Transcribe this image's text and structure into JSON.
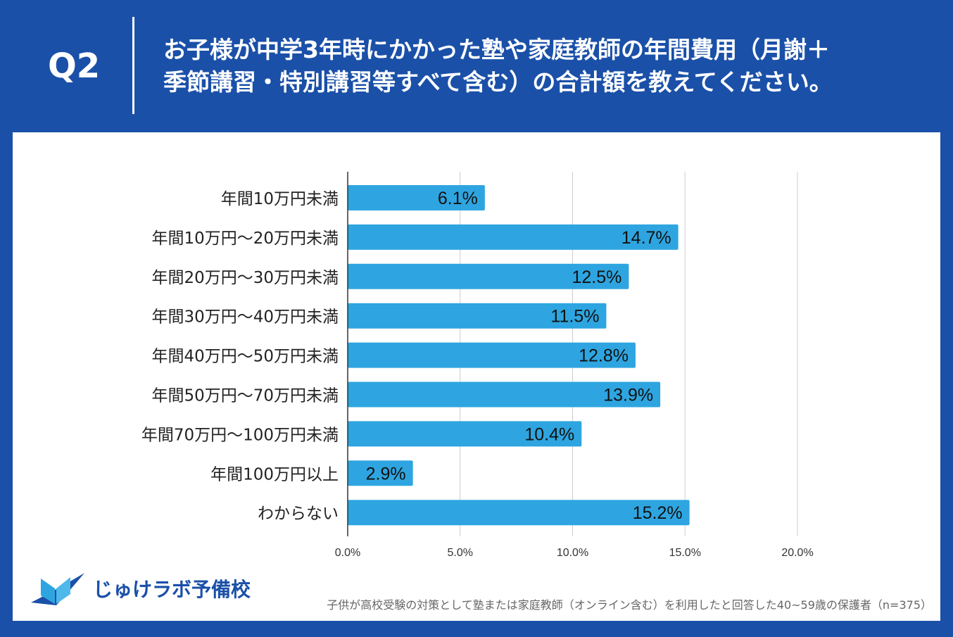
{
  "header": {
    "q_label": "Q2",
    "title_line1": "お子様が中学3年時にかかった塾や家庭教師の年間費用（月謝＋",
    "title_line2": "季節講習・特別講習等すべて含む）の合計額を教えてください。"
  },
  "colors": {
    "background": "#1a50a8",
    "bar": "#2ea5e0",
    "grid": "#cccccc"
  },
  "chart_data": {
    "type": "bar",
    "orientation": "horizontal",
    "categories": [
      "年間10万円未満",
      "年間10万円～20万円未満",
      "年間20万円～30万円未満",
      "年間30万円～40万円未満",
      "年間40万円～50万円未満",
      "年間50万円～70万円未満",
      "年間70万円～100万円未満",
      "年間100万円以上",
      "わからない"
    ],
    "values": [
      6.1,
      14.7,
      12.5,
      11.5,
      12.8,
      13.9,
      10.4,
      2.9,
      15.2
    ],
    "data_labels": [
      "6.1%",
      "14.7%",
      "12.5%",
      "11.5%",
      "12.8%",
      "13.9%",
      "10.4%",
      "2.9%",
      "15.2%"
    ],
    "xlim": [
      0,
      20
    ],
    "xticks": [
      0,
      5,
      10,
      15,
      20
    ],
    "xtick_labels": [
      "0.0%",
      "5.0%",
      "10.0%",
      "15.0%",
      "20.0%"
    ],
    "grid": true,
    "legend": "none"
  },
  "footer": {
    "logo_text": "じゅけラボ予備校",
    "note": "子供が高校受験の対策として塾または家庭教師（オンライン含む）を利用したと回答した40~59歳の保護者（n=375）"
  }
}
